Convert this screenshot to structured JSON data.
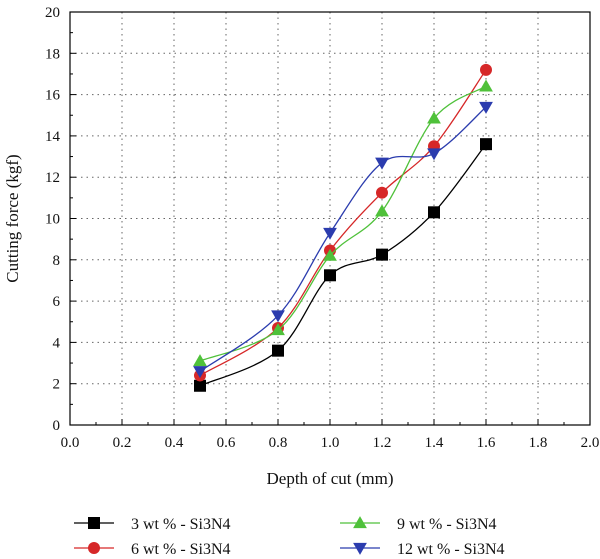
{
  "chart_data": {
    "type": "line",
    "xlabel": "Depth of cut (mm)",
    "ylabel": "Cutting force (kgf)",
    "xlim": [
      0.0,
      2.0
    ],
    "ylim": [
      0,
      20
    ],
    "x_ticks": [
      "0.0",
      "0.2",
      "0.4",
      "0.6",
      "0.8",
      "1.0",
      "1.2",
      "1.4",
      "1.6",
      "1.8",
      "2.0"
    ],
    "y_ticks": [
      "0",
      "2",
      "4",
      "6",
      "8",
      "10",
      "12",
      "14",
      "16",
      "18",
      "20"
    ],
    "grid": true,
    "legend_position": "bottom",
    "x": [
      0.5,
      0.8,
      1.0,
      1.2,
      1.4,
      1.6
    ],
    "series": [
      {
        "name": "3 wt % - Si3N4",
        "color": "#000000",
        "marker": "square",
        "values": [
          1.9,
          3.6,
          7.25,
          8.25,
          10.3,
          13.6
        ]
      },
      {
        "name": "6 wt % - Si3N4",
        "color": "#d62728",
        "marker": "circle",
        "values": [
          2.4,
          4.7,
          8.45,
          11.25,
          13.5,
          17.2
        ]
      },
      {
        "name": "9 wt % - Si3N4",
        "color": "#4fc13a",
        "marker": "triangle-up",
        "values": [
          3.1,
          4.6,
          8.2,
          10.35,
          14.85,
          16.4
        ]
      },
      {
        "name": "12 wt % - Si3N4",
        "color": "#2b3cae",
        "marker": "triangle-down",
        "values": [
          2.6,
          5.3,
          9.3,
          12.7,
          13.15,
          15.4
        ]
      }
    ]
  }
}
